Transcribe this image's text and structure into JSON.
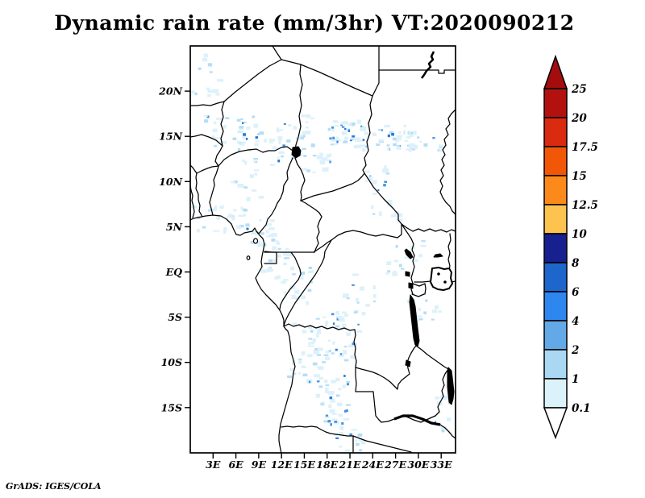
{
  "title": "Dynamic rain rate (mm/3hr) VT:2020090212",
  "credit": "GrADS: IGES/COLA",
  "chart_data": {
    "type": "heatmap",
    "subtype": "grads-shaded-precipitation-map",
    "title": "Dynamic rain rate (mm/3hr) VT:2020090212",
    "variable": "Dynamic rain rate",
    "units": "mm/3hr",
    "valid_time": "2020090212",
    "geo_extent": {
      "lon_min": 0,
      "lon_max": 35,
      "lat_min": -20,
      "lat_max": 25
    },
    "grid": false,
    "x_axis": {
      "tick_labels": [
        "3E",
        "6E",
        "9E",
        "12E",
        "15E",
        "18E",
        "21E",
        "24E",
        "27E",
        "30E",
        "33E"
      ],
      "tick_lons": [
        3,
        6,
        9,
        12,
        15,
        18,
        21,
        24,
        27,
        30,
        33
      ]
    },
    "y_axis": {
      "tick_labels": [
        "20N",
        "15N",
        "10N",
        "5N",
        "EQ",
        "5S",
        "10S",
        "15S"
      ],
      "tick_lats": [
        20,
        15,
        10,
        5,
        0,
        -5,
        -10,
        -15
      ]
    },
    "colorbar": {
      "position": "right",
      "orientation": "vertical",
      "boundary_labels": [
        "25",
        "20",
        "17.5",
        "15",
        "12.5",
        "10",
        "8",
        "6",
        "4",
        "2",
        "1",
        "0.1"
      ],
      "boundary_values": [
        25,
        20,
        17.5,
        15,
        12.5,
        10,
        8,
        6,
        4,
        2,
        1,
        0.1
      ],
      "segment_colors_top_to_bottom": [
        "#a30d0e",
        "#b31110",
        "#da2a10",
        "#f25708",
        "#fb8a1a",
        "#fcc44e",
        "#181f8e",
        "#1d66cb",
        "#2e86ef",
        "#63a9e8",
        "#aad8f2",
        "#dcf2fa",
        "#ffffff"
      ],
      "arrow_top": true,
      "arrow_bottom": true
    },
    "speckle_colors": {
      "pale": "#dcf1fa",
      "mid": "#b4def5",
      "strong": "#4493e6",
      "dark": "#2a7bd8"
    },
    "seed": 47,
    "rain_cells": [
      {
        "lon": 2.0,
        "lat": 22.0,
        "dlon": 2.2,
        "dlat": 2.5,
        "n": 16,
        "heavy": 0.0
      },
      {
        "lon": 5.5,
        "lat": 15.5,
        "dlon": 3.5,
        "dlat": 1.8,
        "n": 26,
        "heavy": 0.05
      },
      {
        "lon": 9.0,
        "lat": 13.8,
        "dlon": 3.0,
        "dlat": 2.0,
        "n": 24,
        "heavy": 0.08
      },
      {
        "lon": 14.0,
        "lat": 15.0,
        "dlon": 2.6,
        "dlat": 2.4,
        "n": 30,
        "heavy": 0.15
      },
      {
        "lon": 20.5,
        "lat": 15.3,
        "dlon": 2.3,
        "dlat": 1.5,
        "n": 36,
        "heavy": 0.28
      },
      {
        "lon": 25.5,
        "lat": 14.8,
        "dlon": 3.5,
        "dlat": 1.4,
        "n": 42,
        "heavy": 0.26
      },
      {
        "lon": 30.5,
        "lat": 14.3,
        "dlon": 2.5,
        "dlat": 1.2,
        "n": 20,
        "heavy": 0.12
      },
      {
        "lon": 24.5,
        "lat": 10.2,
        "dlon": 1.6,
        "dlat": 1.6,
        "n": 14,
        "heavy": 0.15
      },
      {
        "lon": 17.0,
        "lat": 12.3,
        "dlon": 2.0,
        "dlat": 1.4,
        "n": 14,
        "heavy": 0.08
      },
      {
        "lon": 8.0,
        "lat": 9.5,
        "dlon": 2.5,
        "dlat": 1.8,
        "n": 10,
        "heavy": 0.03
      },
      {
        "lon": 4.0,
        "lat": 5.8,
        "dlon": 3.6,
        "dlat": 1.4,
        "n": 28,
        "heavy": 0.08
      },
      {
        "lon": 9.6,
        "lat": 4.2,
        "dlon": 1.5,
        "dlat": 1.6,
        "n": 14,
        "heavy": 0.12
      },
      {
        "lon": 11.5,
        "lat": 1.5,
        "dlon": 2.0,
        "dlat": 2.6,
        "n": 26,
        "heavy": 0.08
      },
      {
        "lon": 14.0,
        "lat": -1.5,
        "dlon": 2.0,
        "dlat": 2.0,
        "n": 16,
        "heavy": 0.05
      },
      {
        "lon": 26.0,
        "lat": 6.5,
        "dlon": 2.6,
        "dlat": 1.4,
        "n": 10,
        "heavy": 0.04
      },
      {
        "lon": 22.0,
        "lat": -2.5,
        "dlon": 3.0,
        "dlat": 2.2,
        "n": 14,
        "heavy": 0.05
      },
      {
        "lon": 28.5,
        "lat": 1.5,
        "dlon": 2.6,
        "dlat": 2.2,
        "n": 16,
        "heavy": 0.05
      },
      {
        "lon": 31.0,
        "lat": -4.5,
        "dlon": 2.4,
        "dlat": 1.6,
        "n": 12,
        "heavy": 0.06
      },
      {
        "lon": 19.5,
        "lat": -7.0,
        "dlon": 2.8,
        "dlat": 2.8,
        "n": 40,
        "heavy": 0.22
      },
      {
        "lon": 15.5,
        "lat": -9.0,
        "dlon": 2.6,
        "dlat": 3.4,
        "n": 34,
        "heavy": 0.1
      },
      {
        "lon": 18.8,
        "lat": -14.5,
        "dlon": 2.0,
        "dlat": 3.2,
        "n": 40,
        "heavy": 0.28
      },
      {
        "lon": 21.0,
        "lat": -18.3,
        "dlon": 2.0,
        "dlat": 1.5,
        "n": 14,
        "heavy": 0.12
      },
      {
        "lon": 33.5,
        "lat": -16.0,
        "dlon": 1.3,
        "dlat": 2.2,
        "n": 10,
        "heavy": 0.1
      }
    ]
  }
}
